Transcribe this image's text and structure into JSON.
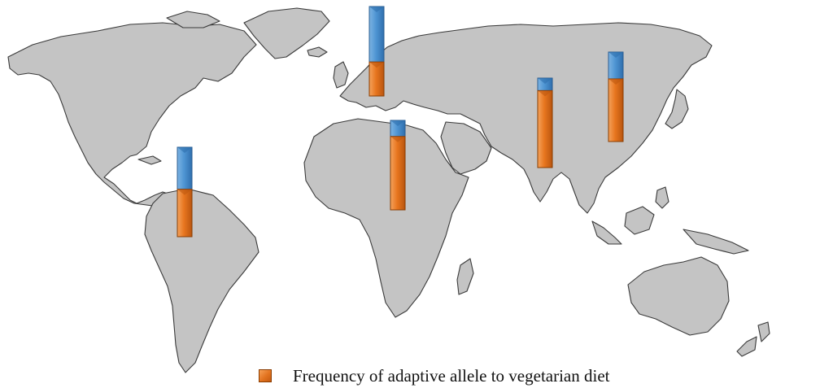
{
  "colors": {
    "adaptive": "#e8761f",
    "remainder": "#4f95d3",
    "land": "#c4c4c4",
    "coast": "#3a3a3a"
  },
  "legend": {
    "label": "Frequency of adaptive allele to vegetarian diet",
    "placement": "bottom-center"
  },
  "chart_data": {
    "type": "bar",
    "title": "",
    "subtitle": "",
    "xlabel": "",
    "ylabel": "",
    "ylim": [
      0,
      1
    ],
    "stacked": true,
    "series": [
      {
        "name": "Frequency of adaptive allele to vegetarian diet",
        "values": [
          0.53,
          0.38,
          0.82,
          0.86,
          0.7
        ]
      }
    ],
    "categories": [
      "South America",
      "Europe",
      "Africa",
      "South Asia",
      "East Asia"
    ],
    "remainder_values": [
      0.47,
      0.62,
      0.18,
      0.14,
      0.3
    ]
  }
}
